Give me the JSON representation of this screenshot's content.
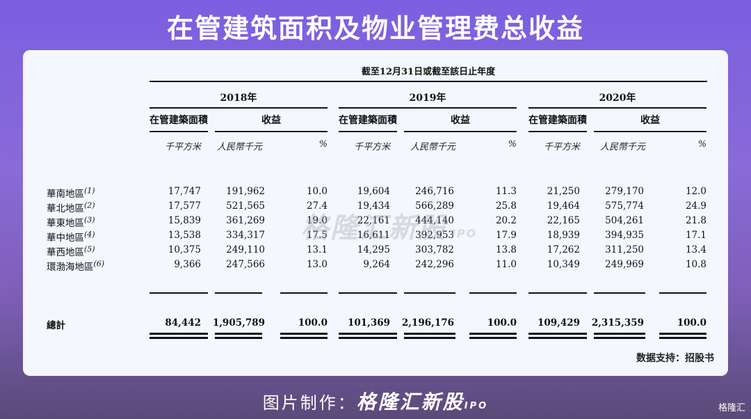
{
  "title": "在管建筑面积及物业管理费总收益",
  "table": {
    "period_header": "截至12月31日或截至該日止年度",
    "years": [
      "2018年",
      "2019年",
      "2020年"
    ],
    "sub_headers": {
      "area": "在管建築面積",
      "revenue": "收益"
    },
    "units": {
      "area": "千平方米",
      "revenue": "人民幣千元",
      "pct": "%"
    },
    "rows": [
      {
        "region": "華南地區",
        "note": "(1)",
        "v": [
          "17,747",
          "191,962",
          "10.0",
          "19,604",
          "246,716",
          "11.3",
          "21,250",
          "279,170",
          "12.0"
        ]
      },
      {
        "region": "華北地區",
        "note": "(2)",
        "v": [
          "17,577",
          "521,565",
          "27.4",
          "19,434",
          "566,289",
          "25.8",
          "19,464",
          "575,774",
          "24.9"
        ]
      },
      {
        "region": "華東地區",
        "note": "(3)",
        "v": [
          "15,839",
          "361,269",
          "19.0",
          "22,161",
          "444,140",
          "20.2",
          "22,165",
          "504,261",
          "21.8"
        ]
      },
      {
        "region": "華中地區",
        "note": "(4)",
        "v": [
          "13,538",
          "334,317",
          "17.5",
          "16,611",
          "392,953",
          "17.9",
          "18,939",
          "394,935",
          "17.1"
        ]
      },
      {
        "region": "華西地區",
        "note": "(5)",
        "v": [
          "10,375",
          "249,110",
          "13.1",
          "14,295",
          "303,782",
          "13.8",
          "17,262",
          "311,250",
          "13.4"
        ]
      },
      {
        "region": "環渤海地區",
        "note": "(6)",
        "v": [
          "9,366",
          "247,566",
          "13.0",
          "9,264",
          "242,296",
          "11.0",
          "10,349",
          "249,969",
          "10.8"
        ]
      }
    ],
    "total": {
      "label": "總計",
      "v": [
        "84,442",
        "1,905,789",
        "100.0",
        "101,369",
        "2,196,176",
        "100.0",
        "109,429",
        "2,315,359",
        "100.0"
      ]
    }
  },
  "watermark": {
    "brand": "格隆汇新股",
    "ipo": "IPO"
  },
  "source": "数据支持：招股书",
  "footer": {
    "prefix": "图片制作：",
    "brand": "格隆汇新股",
    "ipo": "IPO"
  },
  "corner_logo": "格隆汇"
}
